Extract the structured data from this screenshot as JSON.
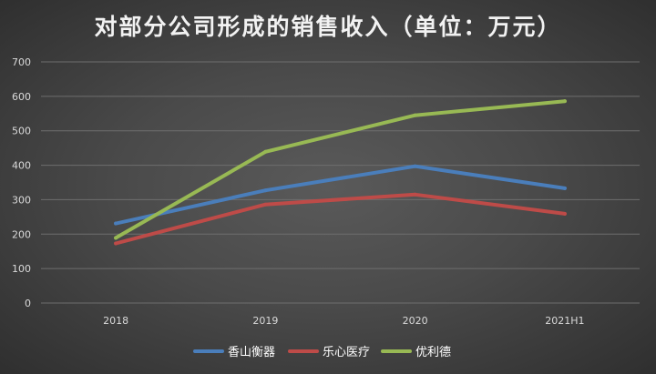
{
  "chart_data": {
    "type": "line",
    "title": "对部分公司形成的销售收入（单位：万元）",
    "categories": [
      "2018",
      "2019",
      "2020",
      "2021H1"
    ],
    "ylim": [
      0,
      700
    ],
    "yticks": [
      0,
      100,
      200,
      300,
      400,
      500,
      600,
      700
    ],
    "grid": true,
    "legend": "bottom",
    "series": [
      {
        "name": "香山衡器",
        "color": "#4a7ebb",
        "values": [
          231,
          327,
          397,
          333
        ]
      },
      {
        "name": "乐心医疗",
        "color": "#be4b48",
        "values": [
          173,
          286,
          315,
          259
        ]
      },
      {
        "name": "优利德",
        "color": "#98b954",
        "values": [
          189,
          439,
          545,
          586
        ]
      }
    ]
  }
}
